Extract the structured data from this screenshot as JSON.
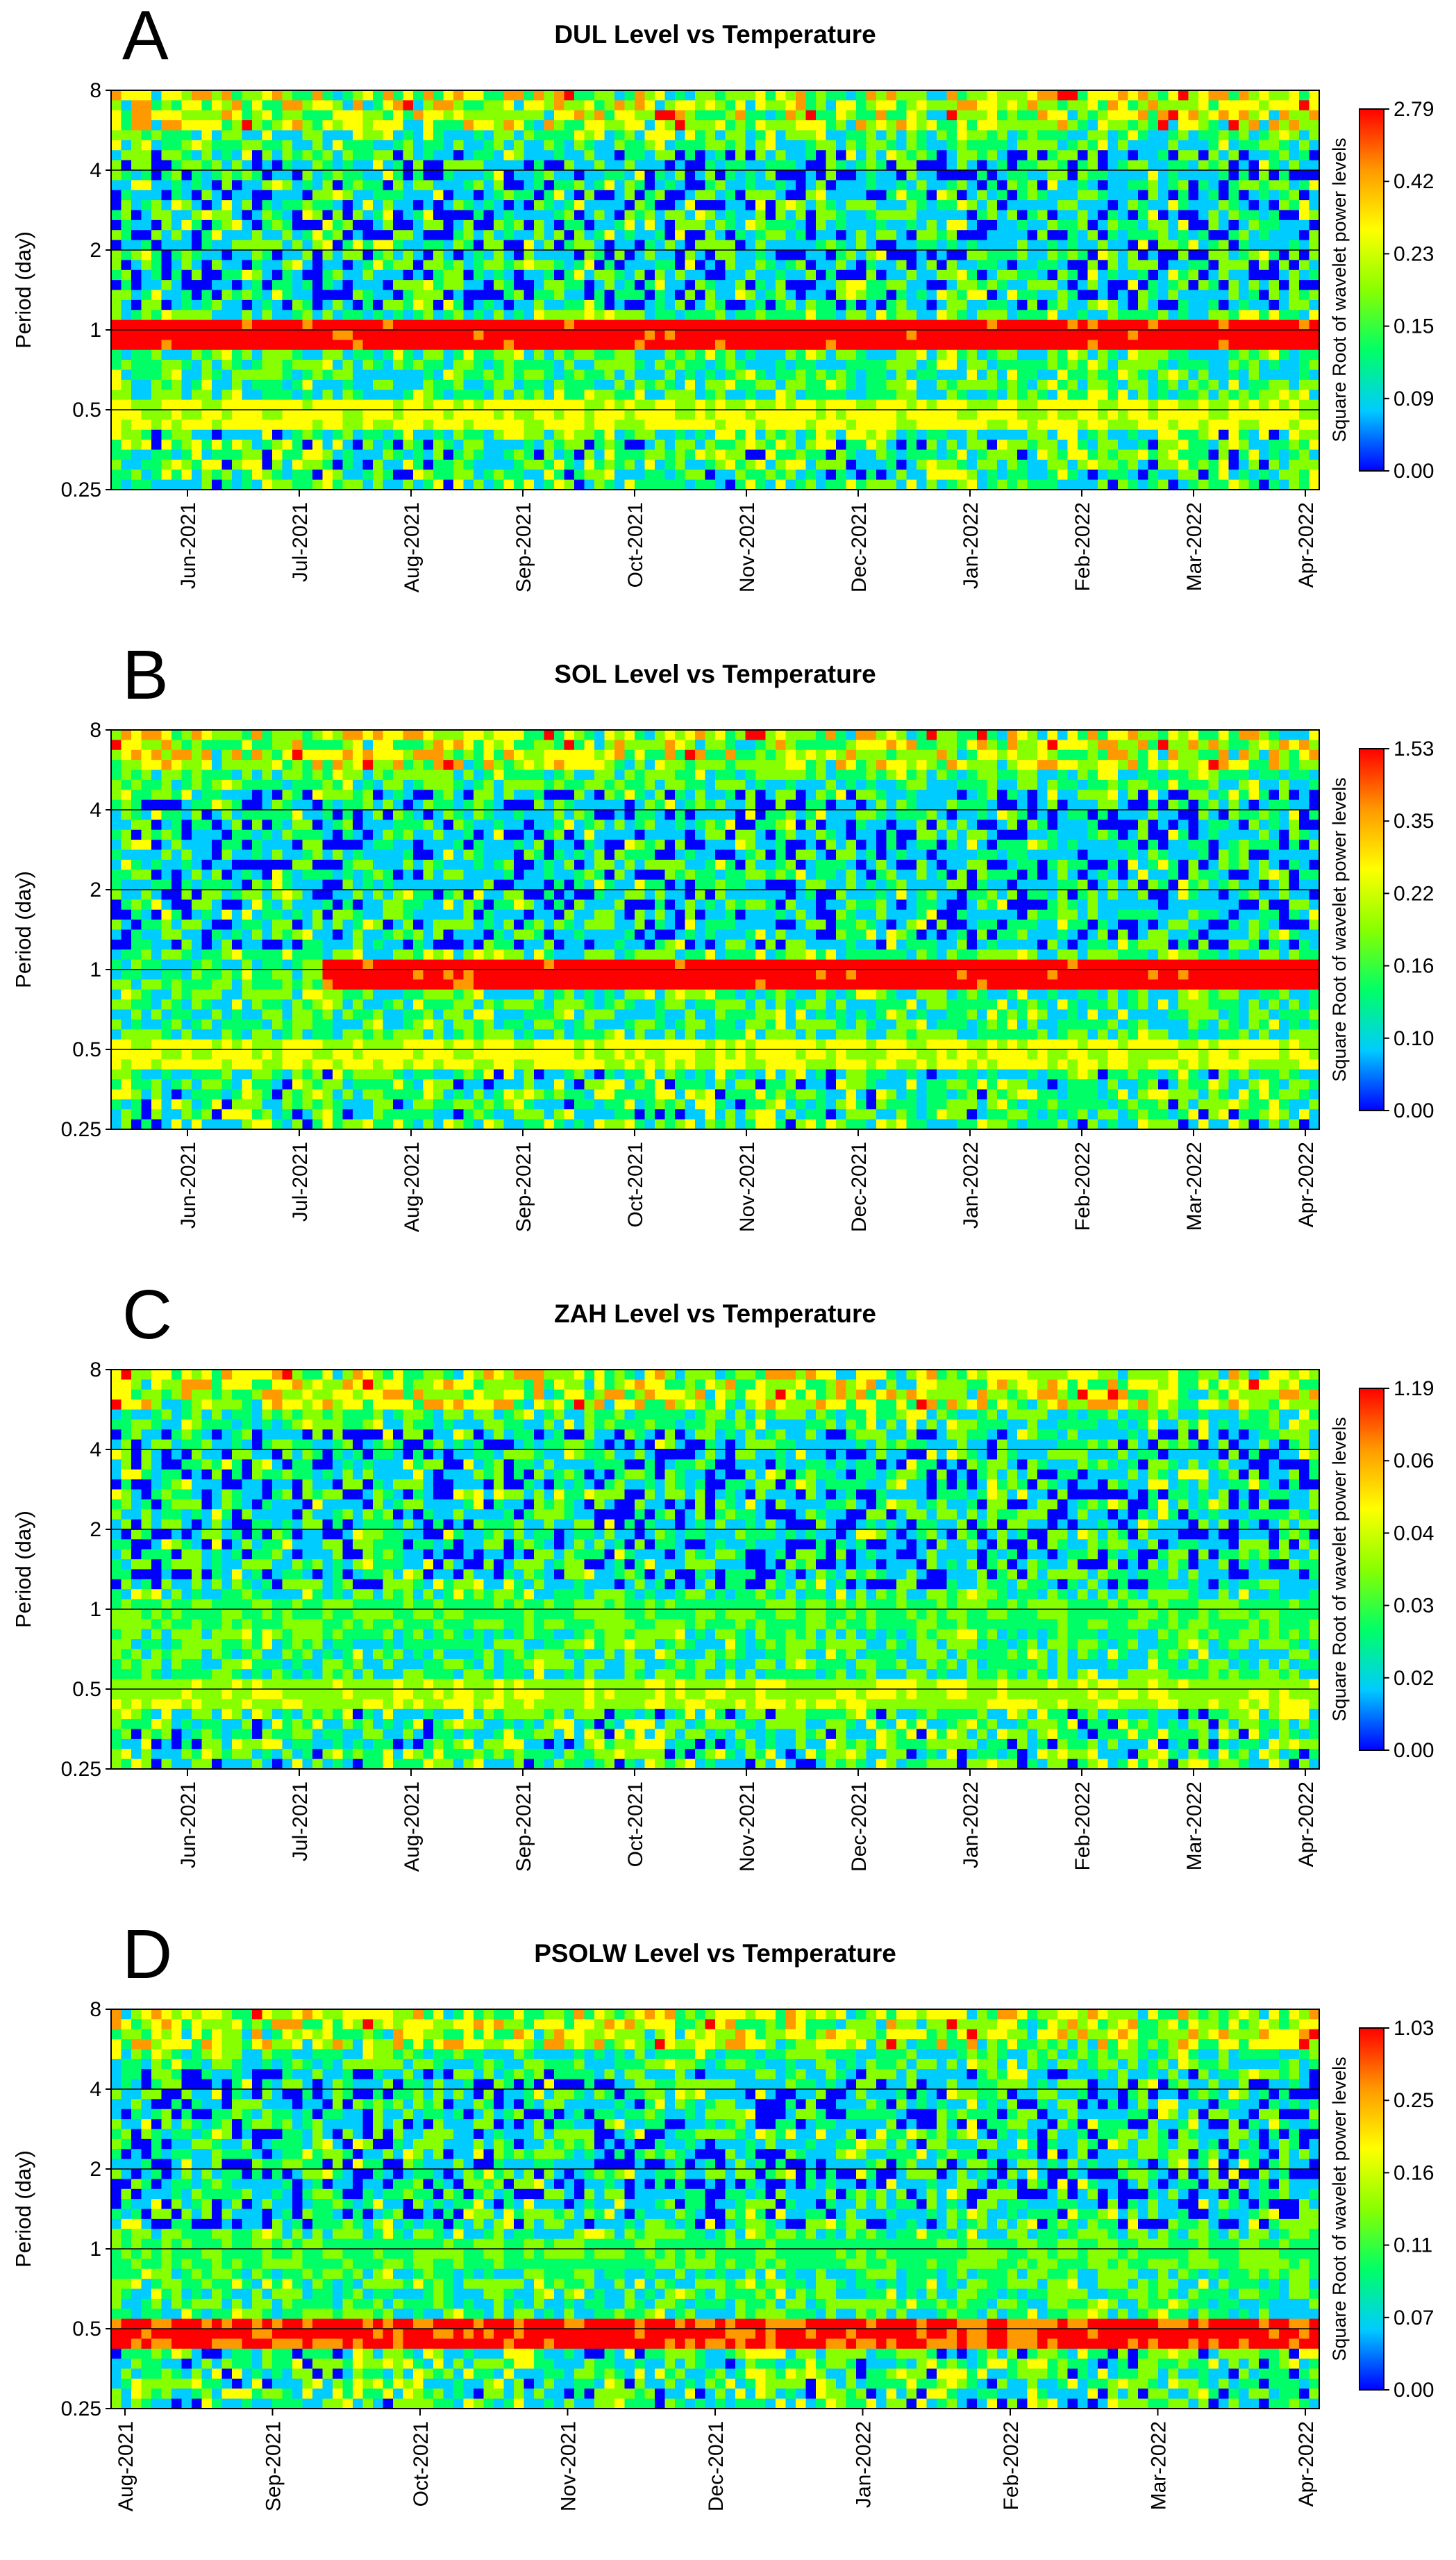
{
  "chart_data": [
    {
      "panel_label": "A",
      "type": "heatmap",
      "title": "DUL Level vs Temperature",
      "ylabel": "Period (day)",
      "y_ticks": [
        "8",
        "4",
        "2",
        "1",
        "0.5",
        "0.25"
      ],
      "y_scale": "log2",
      "ylim": [
        0.25,
        8
      ],
      "x_ticks": [
        "Jun-2021",
        "Jul-2021",
        "Aug-2021",
        "Sep-2021",
        "Oct-2021",
        "Nov-2021",
        "Dec-2021",
        "Jan-2022",
        "Feb-2022",
        "Mar-2022",
        "Apr-2022"
      ],
      "colorbar_label": "Square Root of wavelet power levels",
      "colorbar_ticks": [
        "2.79",
        "0.42",
        "0.23",
        "0.15",
        "0.09",
        "0.00"
      ],
      "band_1day_power": "high",
      "band_1day_extent": "full",
      "band_05day_power": "medium",
      "low_freq_pattern": "mixed blue/green with red at top"
    },
    {
      "panel_label": "B",
      "type": "heatmap",
      "title": "SOL Level vs Temperature",
      "ylabel": "Period (day)",
      "y_ticks": [
        "8",
        "4",
        "2",
        "1",
        "0.5",
        "0.25"
      ],
      "y_scale": "log2",
      "ylim": [
        0.25,
        8
      ],
      "x_ticks": [
        "Jun-2021",
        "Jul-2021",
        "Aug-2021",
        "Sep-2021",
        "Oct-2021",
        "Nov-2021",
        "Dec-2021",
        "Jan-2022",
        "Feb-2022",
        "Mar-2022",
        "Apr-2022"
      ],
      "colorbar_label": "Square Root of wavelet power levels",
      "colorbar_ticks": [
        "1.53",
        "0.35",
        "0.22",
        "0.16",
        "0.10",
        "0.00"
      ],
      "band_1day_power": "high",
      "band_1day_extent": "from mid-Jul-2021",
      "band_05day_power": "medium",
      "low_freq_pattern": "blue patches"
    },
    {
      "panel_label": "C",
      "type": "heatmap",
      "title": "ZAH Level vs Temperature",
      "ylabel": "Period (day)",
      "y_ticks": [
        "8",
        "4",
        "2",
        "1",
        "0.5",
        "0.25"
      ],
      "y_scale": "log2",
      "ylim": [
        0.25,
        8
      ],
      "x_ticks": [
        "Jun-2021",
        "Jul-2021",
        "Aug-2021",
        "Sep-2021",
        "Oct-2021",
        "Nov-2021",
        "Dec-2021",
        "Jan-2022",
        "Feb-2022",
        "Mar-2022",
        "Apr-2022"
      ],
      "colorbar_label": "Square Root of wavelet power levels",
      "colorbar_ticks": [
        "1.19",
        "0.06",
        "0.04",
        "0.03",
        "0.02",
        "0.00"
      ],
      "band_1day_power": "low",
      "band_1day_extent": "full",
      "band_05day_power": "mixed",
      "low_freq_pattern": "blue with vertical red bursts"
    },
    {
      "panel_label": "D",
      "type": "heatmap",
      "title": "PSOLW Level vs Temperature",
      "ylabel": "Period (day)",
      "y_ticks": [
        "8",
        "4",
        "2",
        "1",
        "0.5",
        "0.25"
      ],
      "y_scale": "log2",
      "ylim": [
        0.25,
        8
      ],
      "x_ticks": [
        "Aug-2021",
        "Sep-2021",
        "Oct-2021",
        "Nov-2021",
        "Dec-2021",
        "Jan-2022",
        "Feb-2022",
        "Mar-2022",
        "Apr-2022"
      ],
      "colorbar_label": "Square Root of wavelet power levels",
      "colorbar_ticks": [
        "1.03",
        "0.25",
        "0.16",
        "0.11",
        "0.07",
        "0.00"
      ],
      "band_1day_power": "low",
      "band_1day_extent": "full",
      "band_05day_power": "high",
      "low_freq_pattern": "large blue regions early, green later"
    }
  ],
  "colorscale": [
    "#0000ff",
    "#00ccff",
    "#00ff66",
    "#88ff00",
    "#ffff00",
    "#ff9900",
    "#ff0000"
  ]
}
